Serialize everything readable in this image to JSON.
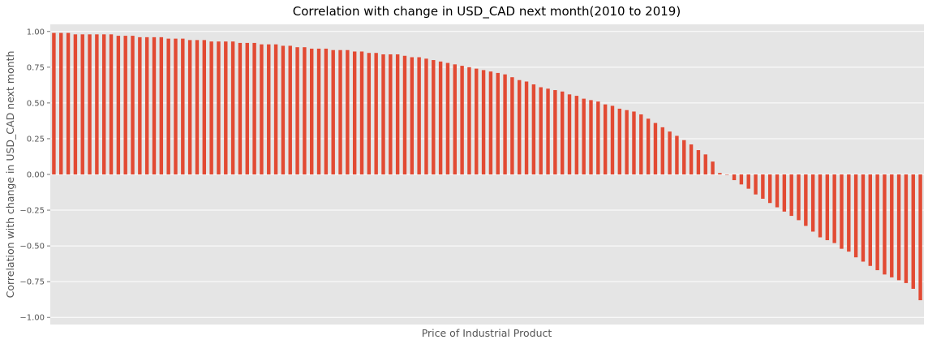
{
  "chart_data": {
    "type": "bar",
    "title": "Correlation with change in USD_CAD next month(2010 to 2019)",
    "xlabel": "Price of Industrial Product",
    "ylabel": "Correlation with change in USD_CAD next month",
    "ylim": [
      -1.05,
      1.05
    ],
    "yticks": [
      1.0,
      0.75,
      0.5,
      0.25,
      0.0,
      -0.25,
      -0.5,
      -0.75,
      -1.0
    ],
    "ytick_labels": [
      "1.00",
      "0.75",
      "0.50",
      "0.25",
      "0.00",
      "−0.25",
      "−0.50",
      "−0.75",
      "−1.00"
    ],
    "grid": true,
    "bar_color": "#E24A33",
    "background_color": "#E5E5E5",
    "grid_color": "#FFFFFF",
    "values": [
      0.99,
      0.99,
      0.99,
      0.98,
      0.98,
      0.98,
      0.98,
      0.98,
      0.98,
      0.97,
      0.97,
      0.97,
      0.96,
      0.96,
      0.96,
      0.96,
      0.95,
      0.95,
      0.95,
      0.94,
      0.94,
      0.94,
      0.93,
      0.93,
      0.93,
      0.93,
      0.92,
      0.92,
      0.92,
      0.91,
      0.91,
      0.91,
      0.9,
      0.9,
      0.89,
      0.89,
      0.88,
      0.88,
      0.88,
      0.87,
      0.87,
      0.87,
      0.86,
      0.86,
      0.85,
      0.85,
      0.84,
      0.84,
      0.84,
      0.83,
      0.82,
      0.82,
      0.81,
      0.8,
      0.79,
      0.78,
      0.77,
      0.76,
      0.75,
      0.74,
      0.73,
      0.72,
      0.71,
      0.7,
      0.68,
      0.66,
      0.65,
      0.63,
      0.61,
      0.6,
      0.59,
      0.58,
      0.56,
      0.55,
      0.53,
      0.52,
      0.51,
      0.49,
      0.48,
      0.46,
      0.45,
      0.44,
      0.42,
      0.39,
      0.36,
      0.33,
      0.3,
      0.27,
      0.24,
      0.21,
      0.17,
      0.14,
      0.09,
      0.01,
      0.0,
      -0.04,
      -0.07,
      -0.1,
      -0.14,
      -0.17,
      -0.2,
      -0.23,
      -0.26,
      -0.29,
      -0.32,
      -0.36,
      -0.4,
      -0.44,
      -0.46,
      -0.48,
      -0.52,
      -0.54,
      -0.58,
      -0.61,
      -0.64,
      -0.67,
      -0.7,
      -0.72,
      -0.74,
      -0.76,
      -0.8,
      -0.88
    ]
  }
}
